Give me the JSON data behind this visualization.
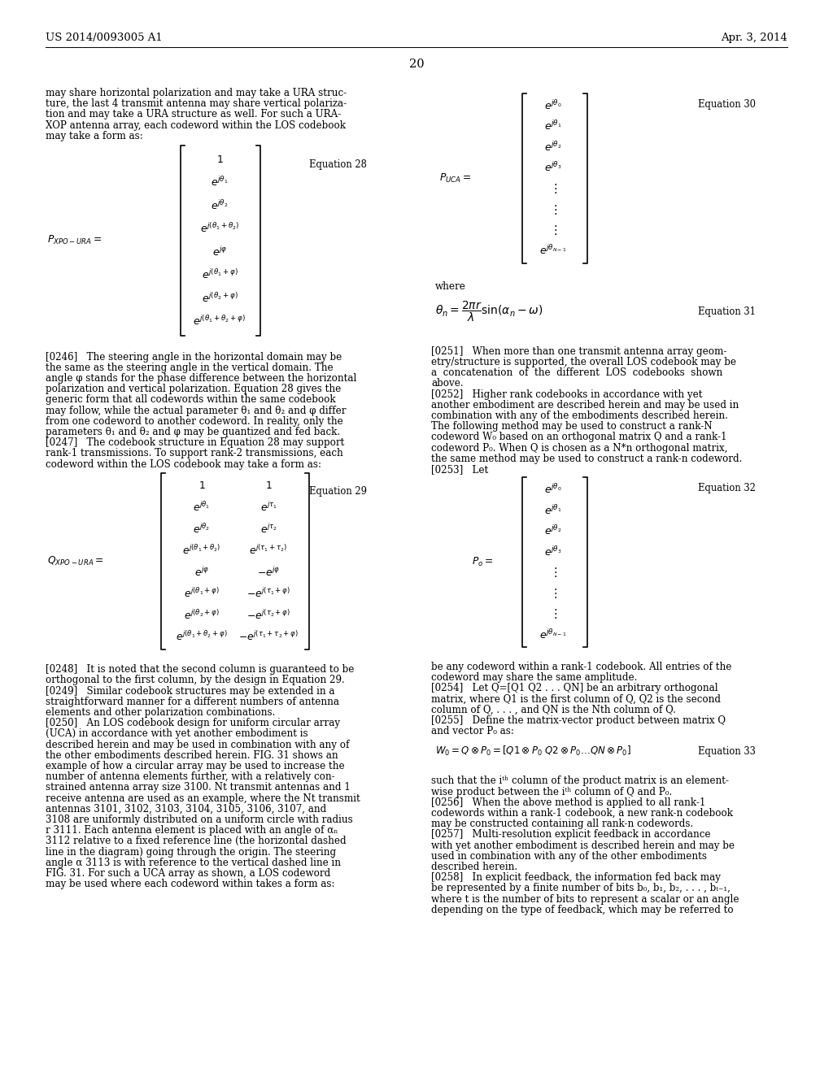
{
  "bg_color": "#ffffff",
  "header_left": "US 2014/0093005 A1",
  "header_right": "Apr. 3, 2014",
  "page_number": "20",
  "lm": 56,
  "rm": 968,
  "cs": 510,
  "rml": 530,
  "fs": 8.6,
  "lh": 13.2,
  "eq_fs": 8.0
}
